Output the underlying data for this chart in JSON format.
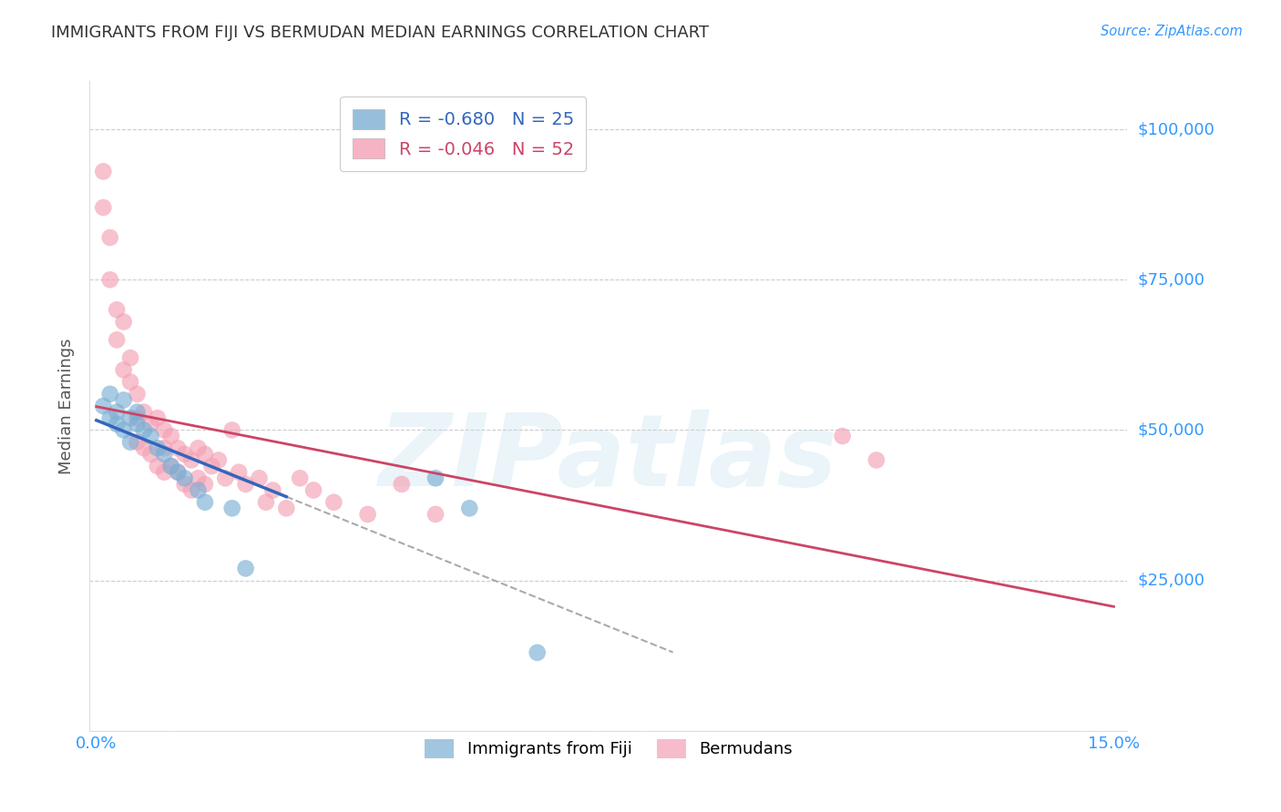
{
  "title": "IMMIGRANTS FROM FIJI VS BERMUDAN MEDIAN EARNINGS CORRELATION CHART",
  "source": "Source: ZipAtlas.com",
  "ylabel": "Median Earnings",
  "watermark": "ZIPatlas",
  "xlim": [
    -0.001,
    0.152
  ],
  "ylim": [
    0,
    108000
  ],
  "yticks": [
    0,
    25000,
    50000,
    75000,
    100000
  ],
  "ytick_labels": [
    "",
    "$25,000",
    "$50,000",
    "$75,000",
    "$100,000"
  ],
  "xticks": [
    0.0,
    0.03,
    0.06,
    0.09,
    0.12,
    0.15
  ],
  "xtick_labels": [
    "0.0%",
    "",
    "",
    "",
    "",
    "15.0%"
  ],
  "fiji_R": -0.68,
  "fiji_N": 25,
  "bermuda_R": -0.046,
  "bermuda_N": 52,
  "fiji_color": "#7BAFD4",
  "bermuda_color": "#F4A0B5",
  "fiji_line_color": "#3366BB",
  "bermuda_line_color": "#CC4466",
  "fiji_scatter_x": [
    0.001,
    0.002,
    0.002,
    0.003,
    0.003,
    0.004,
    0.004,
    0.005,
    0.005,
    0.006,
    0.006,
    0.007,
    0.008,
    0.009,
    0.01,
    0.011,
    0.012,
    0.013,
    0.015,
    0.016,
    0.02,
    0.022,
    0.05,
    0.055,
    0.065
  ],
  "fiji_scatter_y": [
    54000,
    56000,
    52000,
    53000,
    51000,
    55000,
    50000,
    52000,
    48000,
    53000,
    51000,
    50000,
    49000,
    47000,
    46000,
    44000,
    43000,
    42000,
    40000,
    38000,
    37000,
    27000,
    42000,
    37000,
    13000
  ],
  "bermuda_scatter_x": [
    0.001,
    0.001,
    0.002,
    0.002,
    0.003,
    0.003,
    0.004,
    0.004,
    0.005,
    0.005,
    0.006,
    0.006,
    0.006,
    0.007,
    0.007,
    0.008,
    0.008,
    0.009,
    0.009,
    0.01,
    0.01,
    0.01,
    0.011,
    0.011,
    0.012,
    0.012,
    0.013,
    0.013,
    0.014,
    0.014,
    0.015,
    0.015,
    0.016,
    0.016,
    0.017,
    0.018,
    0.019,
    0.02,
    0.021,
    0.022,
    0.024,
    0.025,
    0.026,
    0.028,
    0.03,
    0.032,
    0.035,
    0.04,
    0.045,
    0.05,
    0.11,
    0.115
  ],
  "bermuda_scatter_y": [
    93000,
    87000,
    82000,
    75000,
    70000,
    65000,
    68000,
    60000,
    58000,
    62000,
    56000,
    52000,
    48000,
    53000,
    47000,
    51000,
    46000,
    52000,
    44000,
    50000,
    47000,
    43000,
    49000,
    44000,
    47000,
    43000,
    46000,
    41000,
    45000,
    40000,
    47000,
    42000,
    46000,
    41000,
    44000,
    45000,
    42000,
    50000,
    43000,
    41000,
    42000,
    38000,
    40000,
    37000,
    42000,
    40000,
    38000,
    36000,
    41000,
    36000,
    49000,
    45000
  ],
  "background_color": "#ffffff",
  "grid_color": "#cccccc",
  "title_color": "#333333",
  "axis_label_color": "#555555",
  "tick_label_color": "#3399FF"
}
